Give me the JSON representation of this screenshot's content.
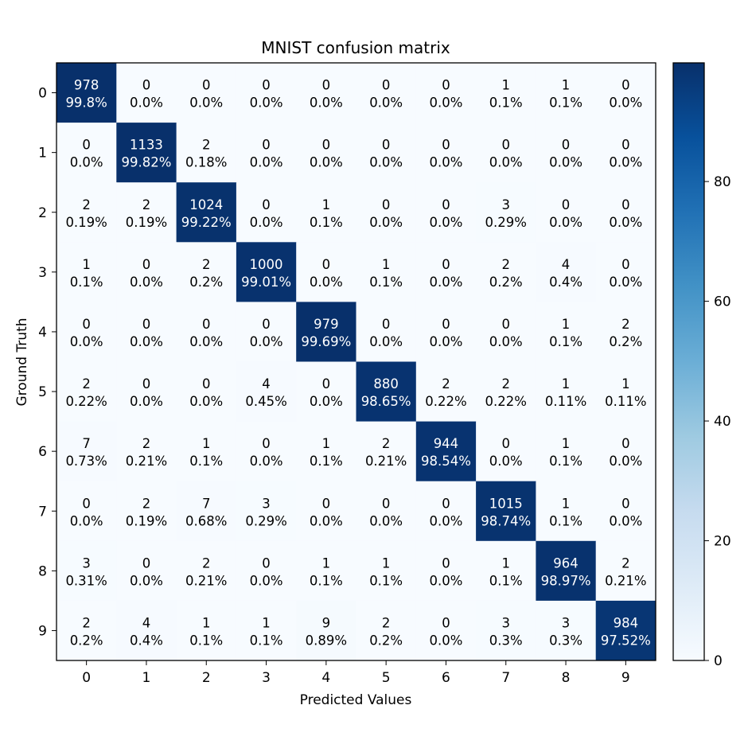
{
  "chart_data": {
    "type": "heatmap",
    "title": "MNIST confusion matrix",
    "xlabel": "Predicted Values",
    "ylabel": "Ground Truth",
    "x_categories": [
      "0",
      "1",
      "2",
      "3",
      "4",
      "5",
      "6",
      "7",
      "8",
      "9"
    ],
    "y_categories": [
      "0",
      "1",
      "2",
      "3",
      "4",
      "5",
      "6",
      "7",
      "8",
      "9"
    ],
    "counts": [
      [
        978,
        0,
        0,
        0,
        0,
        0,
        0,
        1,
        1,
        0
      ],
      [
        0,
        1133,
        2,
        0,
        0,
        0,
        0,
        0,
        0,
        0
      ],
      [
        2,
        2,
        1024,
        0,
        1,
        0,
        0,
        3,
        0,
        0
      ],
      [
        1,
        0,
        2,
        1000,
        0,
        1,
        0,
        2,
        4,
        0
      ],
      [
        0,
        0,
        0,
        0,
        979,
        0,
        0,
        0,
        1,
        2
      ],
      [
        2,
        0,
        0,
        4,
        0,
        880,
        2,
        2,
        1,
        1
      ],
      [
        7,
        2,
        1,
        0,
        1,
        2,
        944,
        0,
        1,
        0
      ],
      [
        0,
        2,
        7,
        3,
        0,
        0,
        0,
        1015,
        1,
        0
      ],
      [
        3,
        0,
        2,
        0,
        1,
        1,
        0,
        1,
        964,
        2
      ],
      [
        2,
        4,
        1,
        1,
        9,
        2,
        0,
        3,
        3,
        984
      ]
    ],
    "percents": [
      [
        "99.8%",
        "0.0%",
        "0.0%",
        "0.0%",
        "0.0%",
        "0.0%",
        "0.0%",
        "0.1%",
        "0.1%",
        "0.0%"
      ],
      [
        "0.0%",
        "99.82%",
        "0.18%",
        "0.0%",
        "0.0%",
        "0.0%",
        "0.0%",
        "0.0%",
        "0.0%",
        "0.0%"
      ],
      [
        "0.19%",
        "0.19%",
        "99.22%",
        "0.0%",
        "0.1%",
        "0.0%",
        "0.0%",
        "0.29%",
        "0.0%",
        "0.0%"
      ],
      [
        "0.1%",
        "0.0%",
        "0.2%",
        "99.01%",
        "0.0%",
        "0.1%",
        "0.0%",
        "0.2%",
        "0.4%",
        "0.0%"
      ],
      [
        "0.0%",
        "0.0%",
        "0.0%",
        "0.0%",
        "99.69%",
        "0.0%",
        "0.0%",
        "0.0%",
        "0.1%",
        "0.2%"
      ],
      [
        "0.22%",
        "0.0%",
        "0.0%",
        "0.45%",
        "0.0%",
        "98.65%",
        "0.22%",
        "0.22%",
        "0.11%",
        "0.11%"
      ],
      [
        "0.73%",
        "0.21%",
        "0.1%",
        "0.0%",
        "0.1%",
        "0.21%",
        "98.54%",
        "0.0%",
        "0.1%",
        "0.0%"
      ],
      [
        "0.0%",
        "0.19%",
        "0.68%",
        "0.29%",
        "0.0%",
        "0.0%",
        "0.0%",
        "98.74%",
        "0.1%",
        "0.0%"
      ],
      [
        "0.31%",
        "0.0%",
        "0.21%",
        "0.0%",
        "0.1%",
        "0.1%",
        "0.0%",
        "0.1%",
        "98.97%",
        "0.21%"
      ],
      [
        "0.2%",
        "0.4%",
        "0.1%",
        "0.1%",
        "0.89%",
        "0.2%",
        "0.0%",
        "0.3%",
        "0.3%",
        "97.52%"
      ]
    ],
    "colorbar": {
      "ticks": [
        "0",
        "20",
        "40",
        "60",
        "80"
      ],
      "range": [
        0,
        99.82
      ],
      "colormap": [
        "#f7fbff",
        "#deebf7",
        "#c6dbef",
        "#9ecae1",
        "#6baed6",
        "#4292c6",
        "#2171b5",
        "#08519c",
        "#08306b"
      ]
    },
    "cell_text_color_light": "#ffffff",
    "cell_text_color_dark": "#000000",
    "grid": false
  }
}
